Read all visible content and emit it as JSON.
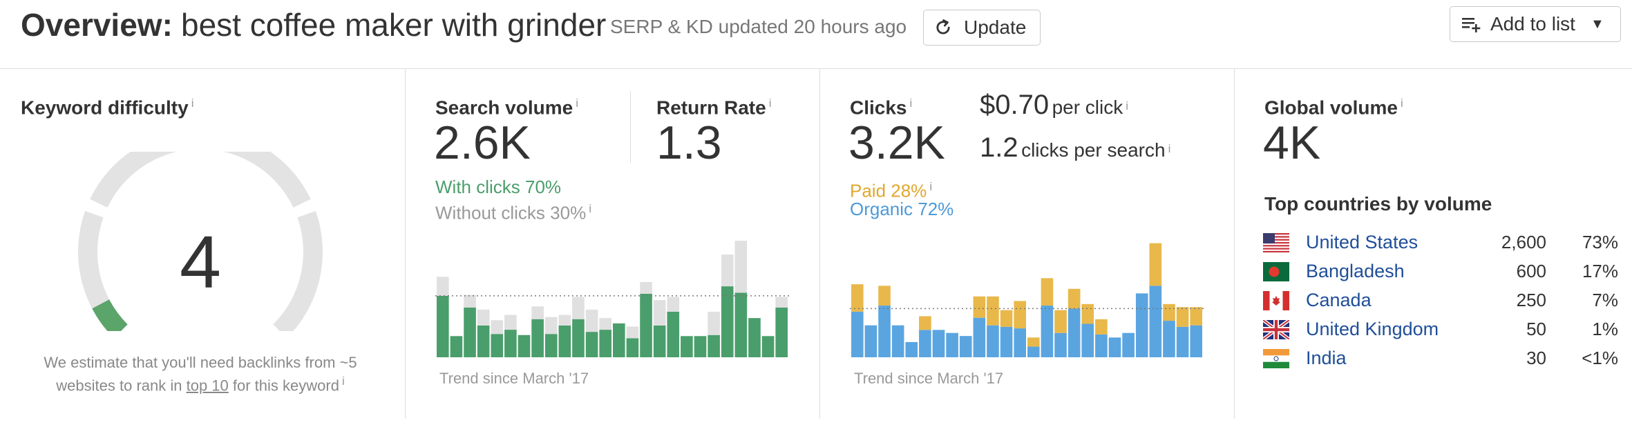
{
  "header": {
    "overview_label": "Overview:",
    "keyword": "best coffee maker with grinder",
    "updated_text": "SERP & KD updated 20 hours ago",
    "update_button": "Update",
    "add_to_list_button": "Add to list",
    "icons": {
      "update": "refresh-icon",
      "add_to_list": "playlist-add-icon",
      "dropdown": "caret-down-icon"
    }
  },
  "keyword_difficulty": {
    "title": "Keyword difficulty",
    "info": "i",
    "value": "4",
    "gauge_level": 4,
    "gauge_max": 100,
    "description_before": "We estimate that you'll need backlinks from ~5 websites to rank in ",
    "description_link": "top 10",
    "description_after": " for this keyword",
    "colors": {
      "fill": "#5ba46a",
      "track": "#e3e3e3"
    }
  },
  "search_volume": {
    "title": "Search volume",
    "info": "i",
    "value": "2.6K",
    "return_rate_title": "Return Rate",
    "return_rate_value": "1.3",
    "with_clicks": "With clicks 70%",
    "without_clicks": "Without clicks 30%",
    "trend_label": "Trend since March '17",
    "colors": {
      "with_clicks": "#4a9e6b",
      "without_clicks": "#e0e0e0"
    },
    "chart_data": {
      "type": "bar",
      "stacked": true,
      "bars": 26,
      "series": [
        {
          "name": "With clicks",
          "values": [
            58,
            20,
            47,
            30,
            22,
            26,
            21,
            36,
            22,
            30,
            36,
            24,
            26,
            32,
            18,
            60,
            30,
            43,
            20,
            20,
            21,
            67,
            61,
            37,
            20,
            47
          ]
        },
        {
          "name": "Without clicks",
          "values": [
            18,
            0,
            12,
            15,
            13,
            14,
            0,
            12,
            16,
            10,
            21,
            21,
            11,
            0,
            11,
            11,
            24,
            14,
            0,
            0,
            22,
            30,
            49,
            0,
            0,
            10
          ]
        }
      ],
      "reference_line": 58
    }
  },
  "clicks": {
    "title": "Clicks",
    "info": "i",
    "value": "3.2K",
    "per_click_value": "$0.70",
    "per_click_label": "per click",
    "per_search_value": "1.2",
    "per_search_label": "clicks per search",
    "paid": "Paid 28%",
    "organic": "Organic 72%",
    "trend_label": "Trend since March '17",
    "colors": {
      "paid": "#e8b84b",
      "organic": "#5aa5e0"
    },
    "chart_data": {
      "type": "bar",
      "stacked": true,
      "bars": 26,
      "series": [
        {
          "name": "Organic",
          "values": [
            30,
            21,
            34,
            21,
            10,
            18,
            18,
            16,
            14,
            26,
            21,
            20,
            19,
            7,
            34,
            16,
            32,
            22,
            15,
            13,
            16,
            42,
            47,
            24,
            20,
            21
          ]
        },
        {
          "name": "Paid",
          "values": [
            18,
            0,
            13,
            0,
            0,
            9,
            0,
            0,
            0,
            14,
            19,
            11,
            18,
            6,
            18,
            15,
            13,
            13,
            10,
            0,
            0,
            0,
            28,
            11,
            13,
            12
          ]
        }
      ],
      "reference_line": 32
    }
  },
  "global_volume": {
    "title": "Global volume",
    "info": "i",
    "value": "4K",
    "top_countries_title": "Top countries by volume",
    "countries": [
      {
        "flag": "us-flag-icon",
        "name": "United States",
        "volume": "2,600",
        "share": "73%"
      },
      {
        "flag": "bangladesh-flag-icon",
        "name": "Bangladesh",
        "volume": "600",
        "share": "17%"
      },
      {
        "flag": "canada-flag-icon",
        "name": "Canada",
        "volume": "250",
        "share": "7%"
      },
      {
        "flag": "uk-flag-icon",
        "name": "United Kingdom",
        "volume": "50",
        "share": "1%"
      },
      {
        "flag": "india-flag-icon",
        "name": "India",
        "volume": "30",
        "share": "<1%"
      }
    ]
  }
}
